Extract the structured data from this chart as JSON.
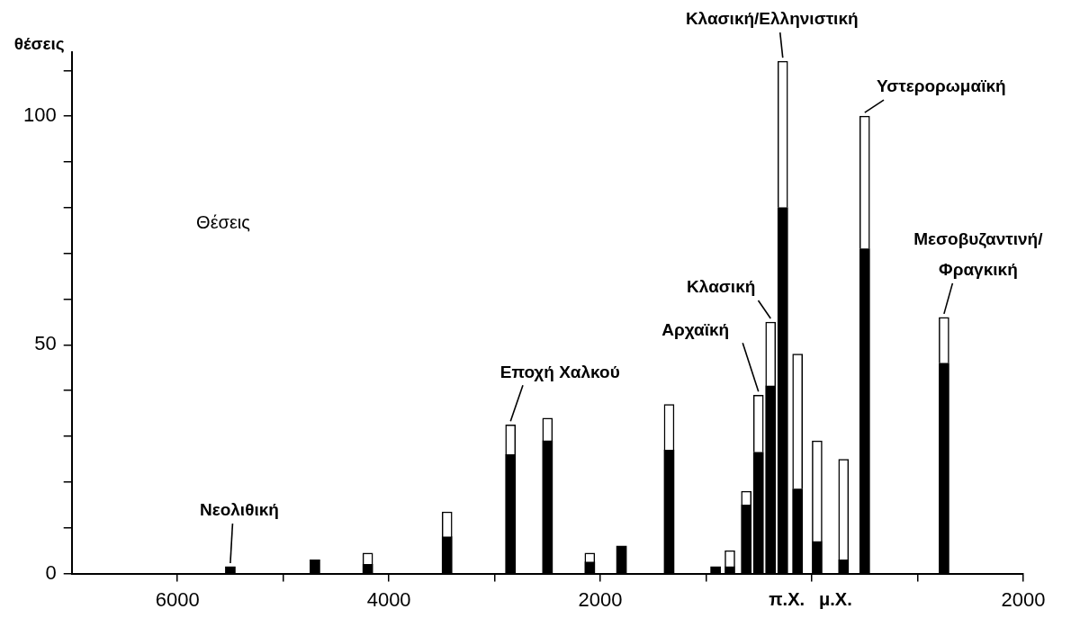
{
  "chart_data": {
    "type": "bar",
    "ylabel": "θέσεις",
    "stacked": true,
    "x": [
      -5500,
      -4700,
      -4200,
      -3450,
      -2850,
      -2500,
      -2100,
      -1800,
      -1350,
      -910,
      -775,
      -620,
      -505,
      -390,
      -275,
      -135,
      50,
      300,
      500,
      1250
    ],
    "series": [
      {
        "color": "#000000",
        "values": [
          1.5,
          3,
          2,
          8,
          26,
          29,
          2.5,
          6,
          27,
          1.5,
          1.5,
          15,
          26.5,
          41,
          80,
          18.5,
          7,
          3,
          71,
          46
        ]
      },
      {
        "color": "#ffffff",
        "values": [
          0,
          0,
          2.5,
          5.5,
          6.5,
          5,
          2,
          0,
          10,
          0,
          3.5,
          3,
          12.5,
          14,
          32,
          29.5,
          22,
          22,
          29,
          10
        ]
      }
    ],
    "xlim": [
      -7000,
      2000
    ],
    "xticks": [
      {
        "value": -6000,
        "label": "6000"
      },
      {
        "value": -5000,
        "label": null
      },
      {
        "value": -4000,
        "label": "4000"
      },
      {
        "value": -3000,
        "label": null
      },
      {
        "value": -2000,
        "label": "2000"
      },
      {
        "value": -1000,
        "label": null
      },
      {
        "value": 0,
        "label": null
      },
      {
        "value": 1000,
        "label": null
      },
      2000
    ],
    "ylim": [
      0,
      114
    ],
    "yticks": [
      0,
      {
        "value": 10,
        "label": null
      },
      {
        "value": 20,
        "label": null
      },
      {
        "value": 30,
        "label": null
      },
      {
        "value": 40,
        "label": null
      },
      50,
      {
        "value": 60,
        "label": null
      },
      {
        "value": 70,
        "label": null
      },
      {
        "value": 80,
        "label": null
      },
      {
        "value": 90,
        "label": null
      },
      100,
      {
        "value": 110,
        "label": null
      }
    ],
    "grid": false,
    "legend": false,
    "annotations": [
      {
        "text": "Νεολιθική",
        "x": -5500,
        "y": 1.5
      },
      {
        "text": "Εποχή Χαλκού",
        "x": -2850,
        "y": 32.5
      },
      {
        "text": "Αρχαϊκή",
        "x": -505,
        "y": 39
      },
      {
        "text": "Κλασική",
        "x": -390,
        "y": 55
      },
      {
        "text": "Κλασική/Ελληνιστική",
        "x": -275,
        "y": 112
      },
      {
        "text": "Υστερορωμαϊκή",
        "x": 500,
        "y": 100
      },
      {
        "text": "Μεσοβυζαντινή/ Φραγκική",
        "x": 1250,
        "y": 56
      },
      "Θέσεις",
      "π.Χ.",
      "μ.Χ."
    ]
  }
}
